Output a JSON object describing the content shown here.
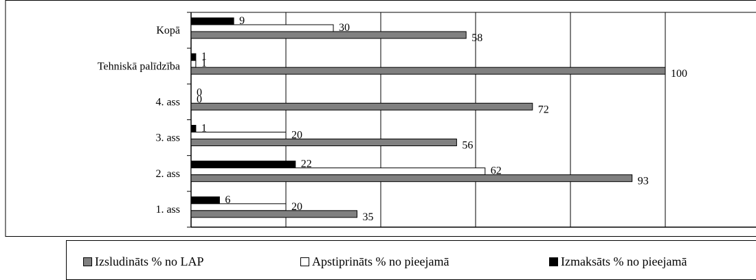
{
  "chart_data": {
    "type": "bar",
    "orientation": "horizontal",
    "categories": [
      "1. ass",
      "2. ass",
      "3. ass",
      "4. ass",
      "Tehniskā palīdzība",
      "Kopā"
    ],
    "series": [
      {
        "name": "Izsludināts % no LAP",
        "color": "#808080",
        "values": [
          35,
          93,
          56,
          72,
          100,
          58
        ]
      },
      {
        "name": "Apstiprināts % no pieejamā",
        "color": "#ffffff",
        "values": [
          20,
          62,
          20,
          0,
          1,
          30
        ]
      },
      {
        "name": "Izmaksāts % no pieejamā",
        "color": "#000000",
        "values": [
          6,
          22,
          1,
          0,
          1,
          9
        ]
      }
    ],
    "xlim": [
      0,
      120
    ],
    "x_gridlines": [
      0,
      20,
      40,
      60,
      80,
      100,
      120
    ],
    "title": "",
    "xlabel": "",
    "ylabel": "",
    "grid": true,
    "legend_position": "bottom"
  }
}
